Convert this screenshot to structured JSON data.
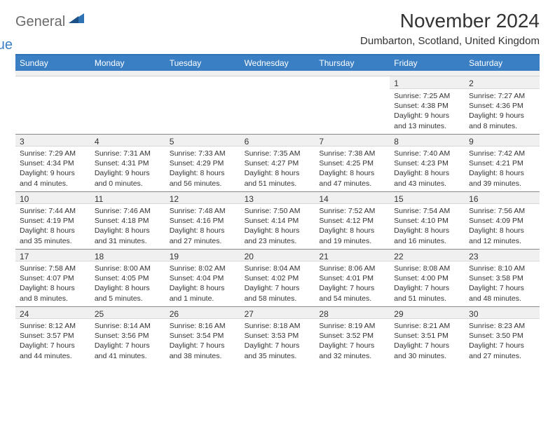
{
  "brand": {
    "text1": "General",
    "text2": "Blue"
  },
  "title": "November 2024",
  "location": "Dumbarton, Scotland, United Kingdom",
  "colors": {
    "header_bg": "#3a7fc4",
    "band_bg": "#f0f0f0",
    "border_top": "#2e74b5"
  },
  "weekdays": [
    "Sunday",
    "Monday",
    "Tuesday",
    "Wednesday",
    "Thursday",
    "Friday",
    "Saturday"
  ],
  "weeks": [
    [
      {
        "n": "",
        "sr": "",
        "ss": "",
        "dl": ""
      },
      {
        "n": "",
        "sr": "",
        "ss": "",
        "dl": ""
      },
      {
        "n": "",
        "sr": "",
        "ss": "",
        "dl": ""
      },
      {
        "n": "",
        "sr": "",
        "ss": "",
        "dl": ""
      },
      {
        "n": "",
        "sr": "",
        "ss": "",
        "dl": ""
      },
      {
        "n": "1",
        "sr": "Sunrise: 7:25 AM",
        "ss": "Sunset: 4:38 PM",
        "dl": "Daylight: 9 hours and 13 minutes."
      },
      {
        "n": "2",
        "sr": "Sunrise: 7:27 AM",
        "ss": "Sunset: 4:36 PM",
        "dl": "Daylight: 9 hours and 8 minutes."
      }
    ],
    [
      {
        "n": "3",
        "sr": "Sunrise: 7:29 AM",
        "ss": "Sunset: 4:34 PM",
        "dl": "Daylight: 9 hours and 4 minutes."
      },
      {
        "n": "4",
        "sr": "Sunrise: 7:31 AM",
        "ss": "Sunset: 4:31 PM",
        "dl": "Daylight: 9 hours and 0 minutes."
      },
      {
        "n": "5",
        "sr": "Sunrise: 7:33 AM",
        "ss": "Sunset: 4:29 PM",
        "dl": "Daylight: 8 hours and 56 minutes."
      },
      {
        "n": "6",
        "sr": "Sunrise: 7:35 AM",
        "ss": "Sunset: 4:27 PM",
        "dl": "Daylight: 8 hours and 51 minutes."
      },
      {
        "n": "7",
        "sr": "Sunrise: 7:38 AM",
        "ss": "Sunset: 4:25 PM",
        "dl": "Daylight: 8 hours and 47 minutes."
      },
      {
        "n": "8",
        "sr": "Sunrise: 7:40 AM",
        "ss": "Sunset: 4:23 PM",
        "dl": "Daylight: 8 hours and 43 minutes."
      },
      {
        "n": "9",
        "sr": "Sunrise: 7:42 AM",
        "ss": "Sunset: 4:21 PM",
        "dl": "Daylight: 8 hours and 39 minutes."
      }
    ],
    [
      {
        "n": "10",
        "sr": "Sunrise: 7:44 AM",
        "ss": "Sunset: 4:19 PM",
        "dl": "Daylight: 8 hours and 35 minutes."
      },
      {
        "n": "11",
        "sr": "Sunrise: 7:46 AM",
        "ss": "Sunset: 4:18 PM",
        "dl": "Daylight: 8 hours and 31 minutes."
      },
      {
        "n": "12",
        "sr": "Sunrise: 7:48 AM",
        "ss": "Sunset: 4:16 PM",
        "dl": "Daylight: 8 hours and 27 minutes."
      },
      {
        "n": "13",
        "sr": "Sunrise: 7:50 AM",
        "ss": "Sunset: 4:14 PM",
        "dl": "Daylight: 8 hours and 23 minutes."
      },
      {
        "n": "14",
        "sr": "Sunrise: 7:52 AM",
        "ss": "Sunset: 4:12 PM",
        "dl": "Daylight: 8 hours and 19 minutes."
      },
      {
        "n": "15",
        "sr": "Sunrise: 7:54 AM",
        "ss": "Sunset: 4:10 PM",
        "dl": "Daylight: 8 hours and 16 minutes."
      },
      {
        "n": "16",
        "sr": "Sunrise: 7:56 AM",
        "ss": "Sunset: 4:09 PM",
        "dl": "Daylight: 8 hours and 12 minutes."
      }
    ],
    [
      {
        "n": "17",
        "sr": "Sunrise: 7:58 AM",
        "ss": "Sunset: 4:07 PM",
        "dl": "Daylight: 8 hours and 8 minutes."
      },
      {
        "n": "18",
        "sr": "Sunrise: 8:00 AM",
        "ss": "Sunset: 4:05 PM",
        "dl": "Daylight: 8 hours and 5 minutes."
      },
      {
        "n": "19",
        "sr": "Sunrise: 8:02 AM",
        "ss": "Sunset: 4:04 PM",
        "dl": "Daylight: 8 hours and 1 minute."
      },
      {
        "n": "20",
        "sr": "Sunrise: 8:04 AM",
        "ss": "Sunset: 4:02 PM",
        "dl": "Daylight: 7 hours and 58 minutes."
      },
      {
        "n": "21",
        "sr": "Sunrise: 8:06 AM",
        "ss": "Sunset: 4:01 PM",
        "dl": "Daylight: 7 hours and 54 minutes."
      },
      {
        "n": "22",
        "sr": "Sunrise: 8:08 AM",
        "ss": "Sunset: 4:00 PM",
        "dl": "Daylight: 7 hours and 51 minutes."
      },
      {
        "n": "23",
        "sr": "Sunrise: 8:10 AM",
        "ss": "Sunset: 3:58 PM",
        "dl": "Daylight: 7 hours and 48 minutes."
      }
    ],
    [
      {
        "n": "24",
        "sr": "Sunrise: 8:12 AM",
        "ss": "Sunset: 3:57 PM",
        "dl": "Daylight: 7 hours and 44 minutes."
      },
      {
        "n": "25",
        "sr": "Sunrise: 8:14 AM",
        "ss": "Sunset: 3:56 PM",
        "dl": "Daylight: 7 hours and 41 minutes."
      },
      {
        "n": "26",
        "sr": "Sunrise: 8:16 AM",
        "ss": "Sunset: 3:54 PM",
        "dl": "Daylight: 7 hours and 38 minutes."
      },
      {
        "n": "27",
        "sr": "Sunrise: 8:18 AM",
        "ss": "Sunset: 3:53 PM",
        "dl": "Daylight: 7 hours and 35 minutes."
      },
      {
        "n": "28",
        "sr": "Sunrise: 8:19 AM",
        "ss": "Sunset: 3:52 PM",
        "dl": "Daylight: 7 hours and 32 minutes."
      },
      {
        "n": "29",
        "sr": "Sunrise: 8:21 AM",
        "ss": "Sunset: 3:51 PM",
        "dl": "Daylight: 7 hours and 30 minutes."
      },
      {
        "n": "30",
        "sr": "Sunrise: 8:23 AM",
        "ss": "Sunset: 3:50 PM",
        "dl": "Daylight: 7 hours and 27 minutes."
      }
    ]
  ]
}
